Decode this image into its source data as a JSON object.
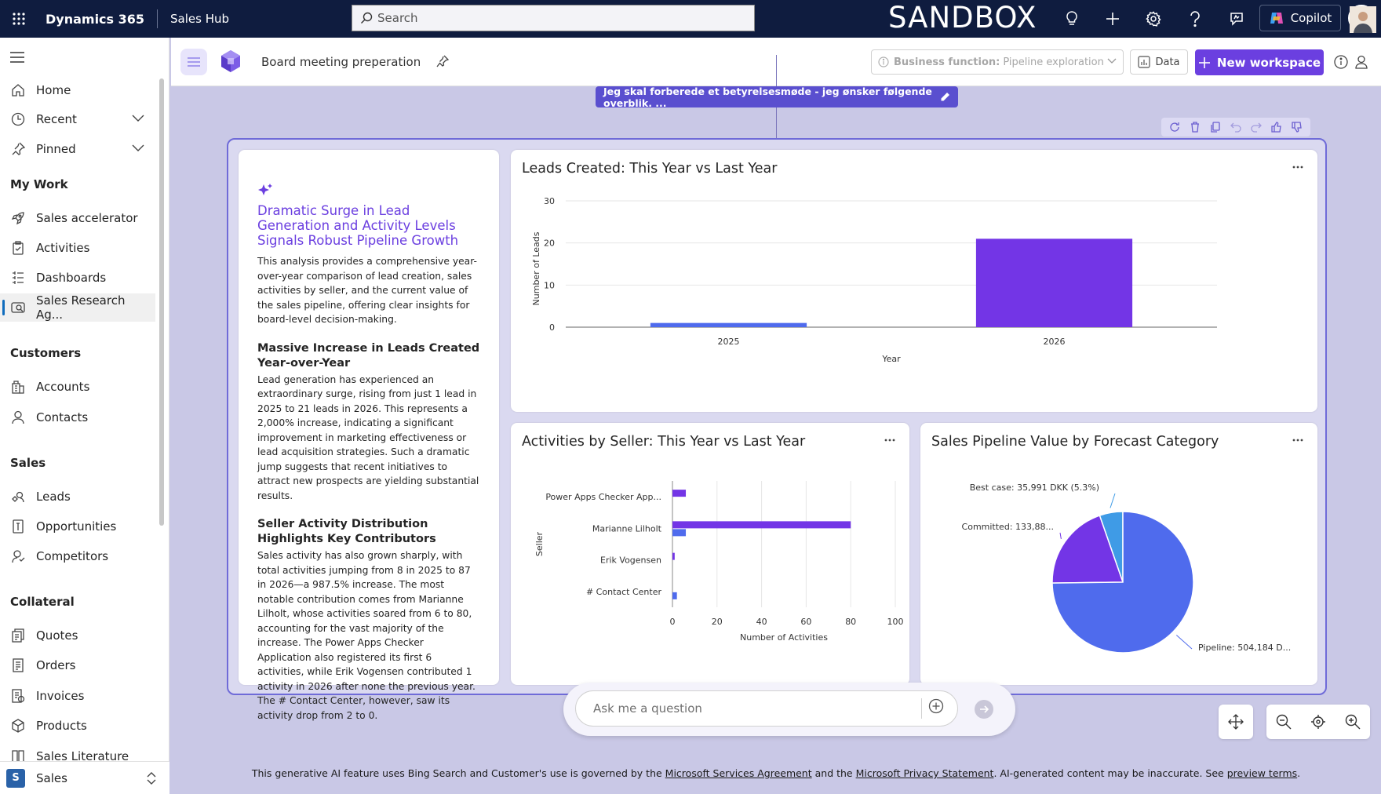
{
  "topbar": {
    "app_name": "Dynamics 365",
    "module_name": "Sales Hub",
    "search_placeholder": "Search",
    "environment_label": "SANDBOX",
    "copilot_label": "Copilot"
  },
  "sidebar": {
    "nav": [
      {
        "label": "Home",
        "icon": "home-icon"
      },
      {
        "label": "Recent",
        "icon": "clock-icon"
      },
      {
        "label": "Pinned",
        "icon": "pin-icon"
      }
    ],
    "groups": [
      {
        "title": "My Work",
        "items": [
          {
            "label": "Sales accelerator",
            "icon": "rocket-icon"
          },
          {
            "label": "Activities",
            "icon": "clipboard-icon"
          },
          {
            "label": "Dashboards",
            "icon": "dashboard-icon"
          },
          {
            "label": "Sales Research Ag...",
            "icon": "research-icon",
            "active": true
          }
        ]
      },
      {
        "title": "Customers",
        "items": [
          {
            "label": "Accounts",
            "icon": "building-icon"
          },
          {
            "label": "Contacts",
            "icon": "person-icon"
          }
        ]
      },
      {
        "title": "Sales",
        "items": [
          {
            "label": "Leads",
            "icon": "phone-icon"
          },
          {
            "label": "Opportunities",
            "icon": "opportunity-icon"
          },
          {
            "label": "Competitors",
            "icon": "competitor-icon"
          }
        ]
      },
      {
        "title": "Collateral",
        "items": [
          {
            "label": "Quotes",
            "icon": "quote-icon"
          },
          {
            "label": "Orders",
            "icon": "order-icon"
          },
          {
            "label": "Invoices",
            "icon": "invoice-icon"
          },
          {
            "label": "Products",
            "icon": "box-icon"
          },
          {
            "label": "Sales Literature",
            "icon": "book-icon"
          }
        ]
      }
    ],
    "area": {
      "badge": "S",
      "name": "Sales"
    }
  },
  "workspace": {
    "title": "Board meeting preperation",
    "business_function_label": "Business function:",
    "business_function_value": "Pipeline exploration",
    "data_button": "Data",
    "new_workspace_button": "New workspace",
    "prompt": "Jeg skal forberede et betyrelsesmøde - jeg ønsker følgende overblik. ..."
  },
  "summary": {
    "title": "Dramatic Surge in Lead Generation and Activity Levels Signals Robust Pipeline Growth",
    "intro": "This analysis provides a comprehensive year-over-year comparison of lead creation, sales activities by seller, and the current value of the sales pipeline, offering clear insights for board-level decision-making.",
    "section1_title": "Massive Increase in Leads Created Year-over-Year",
    "section1_body": "Lead generation has experienced an extraordinary surge, rising from just 1 lead in 2025 to 21 leads in 2026. This represents a 2,000% increase, indicating a significant improvement in marketing effectiveness or lead acquisition strategies. Such a dramatic jump suggests that recent initiatives to attract new prospects are yielding substantial results.",
    "section2_title": "Seller Activity Distribution Highlights Key Contributors",
    "section2_body": "Sales activity has also grown sharply, with total activities jumping from 8 in 2025 to 87 in 2026—a 987.5% increase. The most notable contribution comes from Marianne Lilholt, whose activities soared from 6 to 80, accounting for the vast majority of the increase. The Power Apps Checker Application also registered its first 6 activities, while Erik Vogensen contributed 1 activity in 2026 after none the previous year. The # Contact Center, however, saw its activity drop from 2 to 0."
  },
  "chart_data": [
    {
      "type": "bar",
      "title": "Leads Created: This Year vs Last Year",
      "categories": [
        "2025",
        "2026"
      ],
      "values": [
        1,
        21
      ],
      "xlabel": "Year",
      "ylabel": "Number of Leads",
      "ylim": [
        0,
        30
      ],
      "yticks": [
        0,
        10,
        20,
        30
      ],
      "grid": true,
      "colors": [
        "#4f6bed",
        "#7335e6"
      ]
    },
    {
      "type": "bar",
      "orientation": "horizontal",
      "title": "Activities by Seller: This Year vs Last Year",
      "categories": [
        "Power Apps Checker App...",
        "Marianne Lilholt",
        "Erik Vogensen",
        "# Contact Center"
      ],
      "series": [
        {
          "values": [
            6,
            80,
            1,
            0
          ],
          "color": "#7335e6"
        },
        {
          "values": [
            0,
            6,
            0,
            2
          ],
          "color": "#4f6bed"
        }
      ],
      "xlabel": "Number of Activities",
      "ylabel": "Seller",
      "xlim": [
        0,
        100
      ],
      "xticks": [
        0,
        20,
        40,
        60,
        80,
        100
      ],
      "grid": true
    },
    {
      "type": "pie",
      "title": "Sales Pipeline Value by Forecast Category",
      "labels": [
        "Best case: 35,991 DKK (5.3%)",
        "Committed: 133,88...",
        "Pipeline: 504,184 D..."
      ],
      "values": [
        35991,
        133880,
        504184
      ],
      "colors": [
        "#3f9be6",
        "#7335e6",
        "#4f6bed"
      ]
    }
  ],
  "ask": {
    "placeholder": "Ask me a question"
  },
  "footer": {
    "prefix": "This generative AI feature uses Bing Search and Customer's use is governed by the ",
    "link1": "Microsoft Services Agreement",
    "mid": " and the ",
    "link2": "Microsoft Privacy Statement",
    "suffix": ". AI-generated content may be inaccurate. See ",
    "link3": "preview terms",
    "end": "."
  }
}
